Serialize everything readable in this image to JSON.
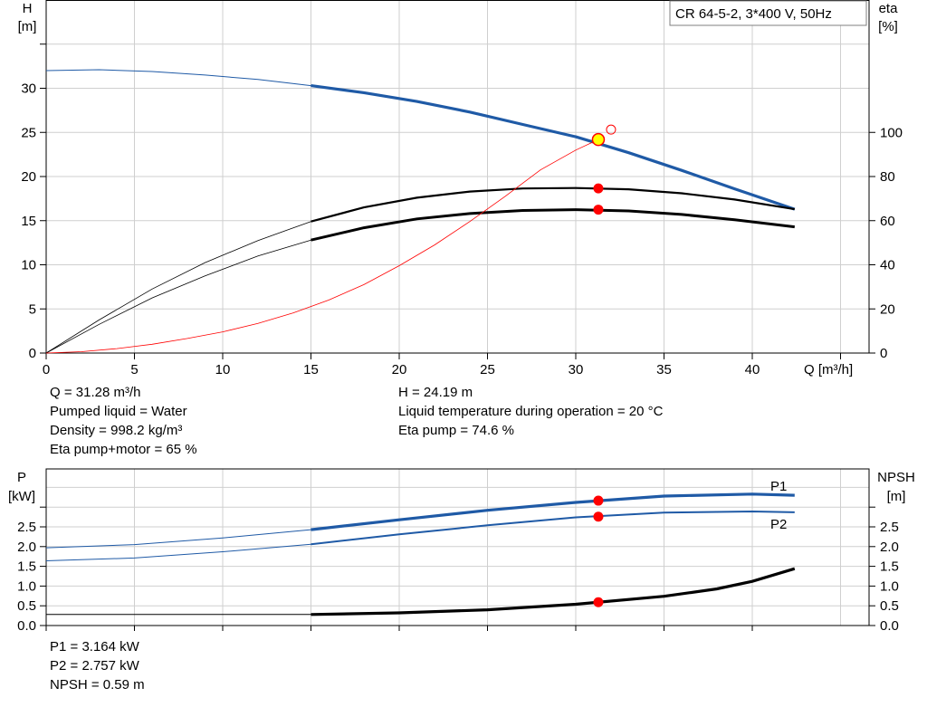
{
  "chart_data": [
    {
      "type": "line",
      "title": "CR 64-5-2, 3*400 V, 50Hz",
      "xlabel": "Q [m³/h]",
      "ylabel": [
        "H",
        "[m]"
      ],
      "y2label": [
        "eta",
        "[%]"
      ],
      "xlim": [
        0,
        45
      ],
      "ylim": [
        0,
        35
      ],
      "y2lim": [
        0,
        140
      ],
      "grid": true,
      "x_ticks": [
        "0",
        "5",
        "10",
        "15",
        "20",
        "25",
        "30",
        "35",
        "40"
      ],
      "y_ticks": [
        "0",
        "5",
        "10",
        "15",
        "20",
        "25",
        "30"
      ],
      "y2_ticks": [
        "0",
        "20",
        "40",
        "60",
        "80",
        "100"
      ],
      "series": [
        {
          "axis": "left",
          "color": "#1f5aa6",
          "x": [
            0,
            3,
            6,
            9,
            12,
            15,
            18,
            21,
            24,
            27,
            30,
            33,
            36,
            39,
            42.4
          ],
          "y": [
            32.0,
            32.1,
            31.9,
            31.5,
            31.0,
            30.3,
            29.5,
            28.5,
            27.3,
            25.9,
            24.5,
            22.7,
            20.7,
            18.6,
            16.3
          ]
        },
        {
          "axis": "right",
          "color": "#000000",
          "x": [
            0,
            3,
            6,
            9,
            12,
            15,
            18,
            21,
            24,
            27,
            30,
            33,
            36,
            39,
            42.4
          ],
          "y": [
            0,
            15,
            29,
            41,
            51,
            59.6,
            66,
            70.4,
            73.2,
            74.6,
            74.8,
            74.2,
            72.4,
            69.6,
            65.2
          ]
        },
        {
          "axis": "right",
          "color": "#000000",
          "x": [
            0,
            3,
            6,
            9,
            12,
            15,
            18,
            21,
            24,
            27,
            30,
            33,
            36,
            39,
            42.4
          ],
          "y": [
            0,
            13,
            25,
            35,
            44,
            51.2,
            56.8,
            60.8,
            63.2,
            64.6,
            65.0,
            64.4,
            62.8,
            60.4,
            57.2
          ]
        },
        {
          "axis": "right",
          "color": "#ff0000",
          "x": [
            0,
            2,
            4,
            6,
            8,
            10,
            12,
            14,
            16,
            18,
            20,
            22,
            24,
            26,
            28,
            30,
            31.28
          ],
          "y": [
            0,
            0.6,
            2,
            4,
            6.6,
            9.6,
            13.4,
            18.2,
            24,
            31,
            39.6,
            49,
            59.6,
            71,
            83,
            92,
            96.8
          ]
        }
      ],
      "operating_point": {
        "Q": 31.28,
        "H": 24.19,
        "eta_pump": 74.6,
        "eta_pump_motor": 65
      },
      "info_left": [
        "Q = 31.28 m³/h",
        "Pumped liquid = Water",
        "Density = 998.2 kg/m³",
        "Eta pump+motor = 65 %"
      ],
      "info_right": [
        "H = 24.19 m",
        "Liquid temperature during operation = 20 °C",
        "Eta pump = 74.6 %"
      ]
    },
    {
      "type": "line",
      "xlabel": "",
      "ylabel": [
        "P",
        "[kW]"
      ],
      "y2label": [
        "NPSH",
        "[m]"
      ],
      "xlim": [
        0,
        45
      ],
      "ylim": [
        0,
        3.5
      ],
      "y2lim": [
        0,
        3.5
      ],
      "grid": true,
      "y_ticks": [
        "0.0",
        "0.5",
        "1.0",
        "1.5",
        "2.0",
        "2.5"
      ],
      "y2_ticks": [
        "0.0",
        "0.5",
        "1.0",
        "1.5",
        "2.0",
        "2.5"
      ],
      "series": [
        {
          "name": "P1",
          "axis": "left",
          "color": "#1f5aa6",
          "x": [
            0,
            5,
            10,
            15,
            20,
            25,
            30,
            35,
            40,
            42.4
          ],
          "y": [
            1.97,
            2.05,
            2.22,
            2.43,
            2.68,
            2.92,
            3.12,
            3.28,
            3.33,
            3.3
          ]
        },
        {
          "name": "P2",
          "axis": "left",
          "color": "#1f5aa6",
          "x": [
            0,
            5,
            10,
            15,
            20,
            25,
            30,
            35,
            40,
            42.4
          ],
          "y": [
            1.64,
            1.71,
            1.87,
            2.06,
            2.31,
            2.54,
            2.74,
            2.86,
            2.89,
            2.87
          ]
        },
        {
          "name": "NPSH",
          "axis": "right",
          "color": "#000000",
          "x": [
            0,
            5,
            10,
            15,
            20,
            25,
            30,
            35,
            38,
            40,
            42.4
          ],
          "y": [
            0.28,
            0.28,
            0.28,
            0.28,
            0.32,
            0.4,
            0.54,
            0.74,
            0.93,
            1.12,
            1.44
          ]
        }
      ],
      "operating_point": {
        "P1": 3.164,
        "P2": 2.757,
        "NPSH": 0.59
      },
      "info_left": [
        "P1 = 3.164 kW",
        "P2 = 2.757 kW",
        "NPSH = 0.59 m"
      ]
    }
  ]
}
